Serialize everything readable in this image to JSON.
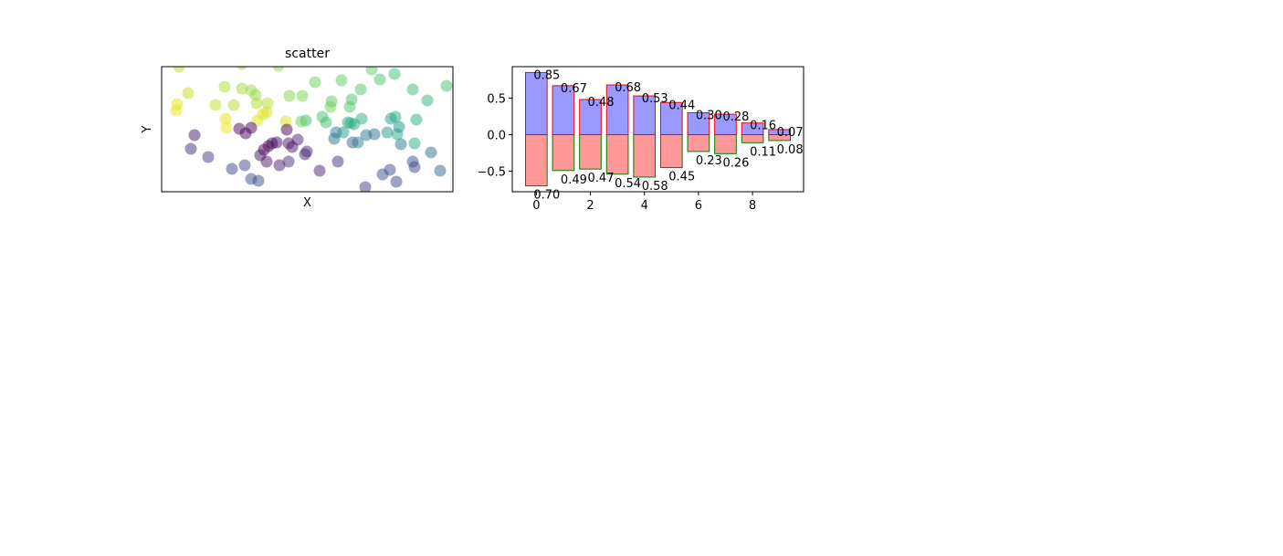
{
  "chart_data": [
    {
      "type": "scatter",
      "title": "scatter",
      "x_label": "X",
      "y_label": "Y",
      "xlim": [
        0,
        319
      ],
      "ylim": [
        0,
        137
      ],
      "x": [
        19,
        88,
        128,
        29,
        17,
        16,
        69,
        59,
        79,
        70,
        71,
        88,
        98,
        103,
        104,
        116,
        115,
        111,
        105,
        136,
        140,
        154,
        168,
        197,
        186,
        185,
        176,
        180,
        158,
        153,
        208,
        206,
        218,
        230,
        239,
        255,
        275,
        291,
        312,
        207,
        219,
        211,
        204,
        191,
        199,
        215,
        209,
        189,
        224,
        233,
        247,
        251,
        258,
        260,
        256,
        279,
        277,
        262,
        295,
        305,
        275,
        277,
        250,
        242,
        257,
        223,
        173,
        193,
        159,
        157,
        149,
        143,
        139,
        137,
        126,
        121,
        117,
        112,
        108,
        115,
        129,
        139,
        98,
        85,
        92,
        36,
        32,
        51,
        77,
        91,
        98,
        106
      ],
      "y": [
        137,
        140,
        138,
        108,
        96,
        89,
        115,
        95,
        95,
        80,
        70,
        113,
        111,
        106,
        97,
        97,
        87,
        85,
        78,
        77,
        105,
        105,
        120,
        122,
        99,
        93,
        82,
        76,
        78,
        77,
        101,
        93,
        112,
        134,
        123,
        129,
        112,
        100,
        116,
        75,
        80,
        74,
        76,
        65,
        65,
        54,
        54,
        58,
        62,
        63,
        65,
        80,
        63,
        71,
        82,
        79,
        53,
        52,
        43,
        23,
        33,
        27,
        24,
        19,
        11,
        5,
        23,
        33,
        44,
        41,
        57,
        49,
        53,
        68,
        54,
        53,
        50,
        46,
        40,
        33,
        29,
        33,
        70,
        69,
        64,
        62,
        47,
        38,
        25,
        29,
        14,
        12
      ],
      "colors": [
        "#bade28",
        "#a2da37",
        "#8ed645",
        "#c8e020",
        "#dfe318",
        "#e7e419",
        "#b2dd2d",
        "#c2df23",
        "#bade28",
        "#e5e419",
        "#f1e51d",
        "#a2da37",
        "#9bd93c",
        "#95d840",
        "#b0dd2f",
        "#b5de2b",
        "#d2e21b",
        "#dde318",
        "#e2e418",
        "#d8e219",
        "#84d44b",
        "#7ad151",
        "#6ccd5a",
        "#60ca60",
        "#5ec962",
        "#6ece58",
        "#4ac16d",
        "#3bbb75",
        "#40bd72",
        "#6ece58",
        "#4ec36b",
        "#52c569",
        "#52c569",
        "#5ec962",
        "#4ac16d",
        "#40bd72",
        "#3bbb75",
        "#2fb47c",
        "#44bf70",
        "#2db27d",
        "#29af7f",
        "#25ab82",
        "#24aa83",
        "#2a788e",
        "#1fa088",
        "#24868e",
        "#31688e",
        "#2c728e",
        "#2a788e",
        "#2c728e",
        "#1f988b",
        "#1fa188",
        "#25ab82",
        "#20928c",
        "#22a785",
        "#29af7f",
        "#27ad81",
        "#2a788e",
        "#2d708e",
        "#32658e",
        "#3b528b",
        "#414487",
        "#3e4a89",
        "#3b528b",
        "#3e4a89",
        "#433e85",
        "#482475",
        "#46327e",
        "#472c7a",
        "#482878",
        "#481f70",
        "#481a6c",
        "#48186a",
        "#450559",
        "#471063",
        "#46085c",
        "#440154",
        "#46075a",
        "#471063",
        "#481769",
        "#482173",
        "#46307e",
        "#440154",
        "#46085c",
        "#450559",
        "#48186a",
        "#472d7b",
        "#443983",
        "#404688",
        "#3f4788",
        "#3b528b",
        "#3e4a89"
      ],
      "alpha": 0.5
    },
    {
      "type": "bar",
      "x": [
        0,
        1,
        2,
        3,
        4,
        5,
        6,
        7,
        8,
        9
      ],
      "xlim": [
        -0.89,
        9.89
      ],
      "ylim": [
        -0.78,
        0.93
      ],
      "xticks": [
        0,
        2,
        4,
        6,
        8
      ],
      "yticks": [
        {
          "value": -0.5,
          "label": "−0.5"
        },
        {
          "value": 0.0,
          "label": "0.0"
        },
        {
          "value": 0.5,
          "label": "0.5"
        }
      ],
      "series": [
        {
          "color": "#9999ff",
          "edgecolor": "#ff0000",
          "values": [
            0.85,
            0.67,
            0.48,
            0.68,
            0.53,
            0.44,
            0.3,
            0.28,
            0.16,
            0.07
          ],
          "value_labels": [
            "0.85",
            "0.67",
            "0.48",
            "0.68",
            "0.53",
            "0.44",
            "0.30",
            "0.28",
            "0.16",
            "0.07"
          ]
        },
        {
          "color": "#ff9999",
          "edgecolor": "#008000",
          "values": [
            -0.7,
            -0.49,
            -0.47,
            -0.54,
            -0.58,
            -0.45,
            -0.23,
            -0.26,
            -0.11,
            -0.08
          ],
          "value_labels": [
            "0.70",
            "0.49",
            "0.47",
            "0.54",
            "0.58",
            "0.45",
            "0.23",
            "0.26",
            "0.11",
            "0.08"
          ]
        }
      ]
    }
  ]
}
